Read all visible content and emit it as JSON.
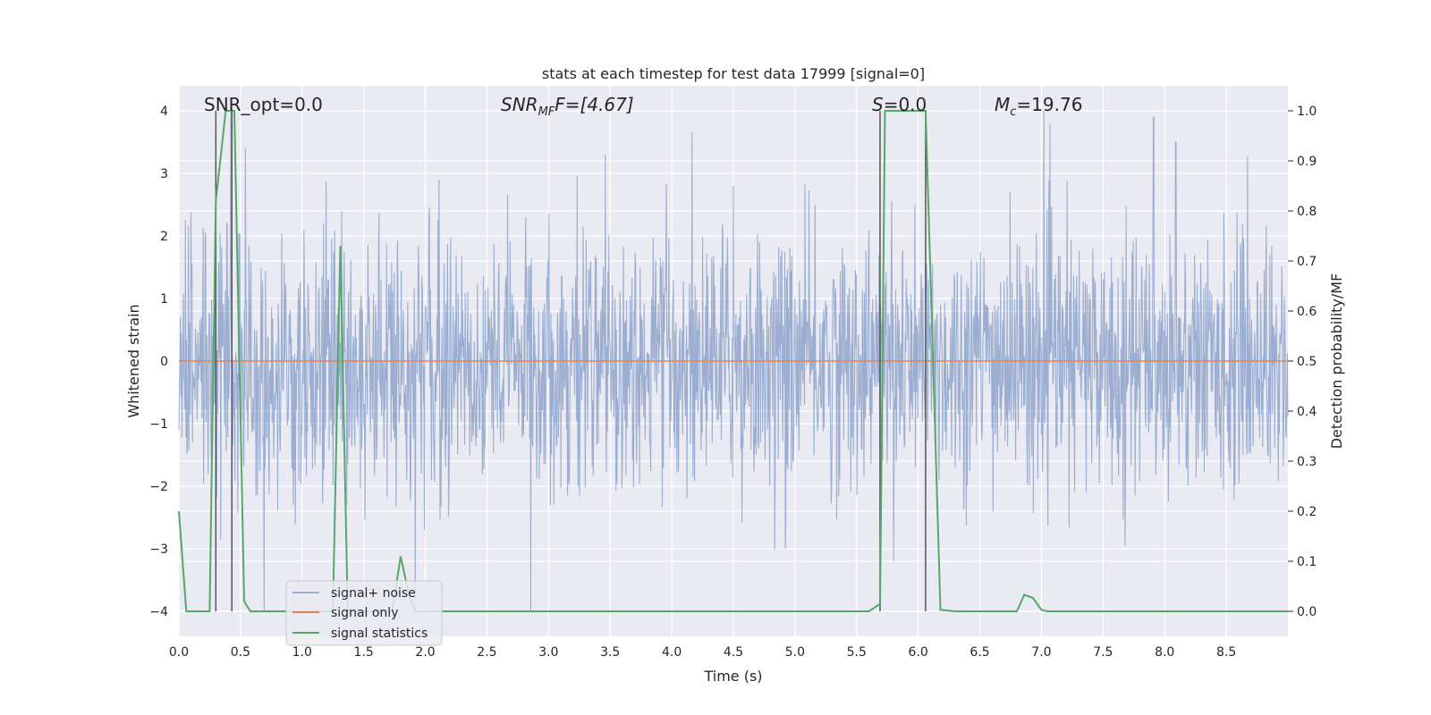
{
  "chart_data": {
    "type": "line",
    "title": "stats at each timestep for test data 17999 [signal=0]",
    "xlabel": "Time (s)",
    "ylabel": "Whitened strain",
    "y2label": "Detection probability/MF",
    "xlim": [
      0.0,
      9.0
    ],
    "ylim": [
      -4.4,
      4.4
    ],
    "y2lim": [
      -0.05,
      1.05
    ],
    "xticks": [
      "0.0",
      "0.5",
      "1.0",
      "1.5",
      "2.0",
      "2.5",
      "3.0",
      "3.5",
      "4.0",
      "4.5",
      "5.0",
      "5.5",
      "6.0",
      "6.5",
      "7.0",
      "7.5",
      "8.0",
      "8.5"
    ],
    "xtick_values": [
      0.0,
      0.5,
      1.0,
      1.5,
      2.0,
      2.5,
      3.0,
      3.5,
      4.0,
      4.5,
      5.0,
      5.5,
      6.0,
      6.5,
      7.0,
      7.5,
      8.0,
      8.5
    ],
    "yticks": [
      "−4",
      "−3",
      "−2",
      "−1",
      "0",
      "1",
      "2",
      "3",
      "4"
    ],
    "ytick_values": [
      -4,
      -3,
      -2,
      -1,
      0,
      1,
      2,
      3,
      4
    ],
    "y2ticks": [
      "0.0",
      "0.1",
      "0.2",
      "0.3",
      "0.4",
      "0.5",
      "0.6",
      "0.7",
      "0.8",
      "0.9",
      "1.0"
    ],
    "y2tick_values": [
      0.0,
      0.1,
      0.2,
      0.3,
      0.4,
      0.5,
      0.6,
      0.7,
      0.8,
      0.9,
      1.0
    ],
    "annotations": {
      "snr_opt": "SNR_opt=0.0",
      "snr_mf_main": "SNR",
      "snr_mf_sub": "MF",
      "snr_mf_rest": "F=[4.67]",
      "s_main": "S",
      "s_rest": "=0.0",
      "mc_main": "M",
      "mc_sub": "c",
      "mc_rest": "=19.76"
    },
    "vertical_markers": [
      0.3,
      0.43,
      5.69,
      6.06
    ],
    "series": [
      {
        "name": "signal+ noise",
        "color": "#4c72b0",
        "noise_envelope": {
          "typical_amplitude": 1.6,
          "peak_amplitude": 4.0,
          "notable_peaks": [
            [
              0.42,
              4.0
            ],
            [
              0.54,
              3.4
            ],
            [
              1.32,
              2.4
            ],
            [
              3.46,
              3.3
            ],
            [
              4.5,
              2.8
            ],
            [
              7.02,
              4.0
            ],
            [
              7.91,
              3.9
            ],
            [
              8.09,
              3.5
            ],
            [
              5.8,
              -3.2
            ],
            [
              0.69,
              -4.0
            ],
            [
              1.92,
              -4.0
            ],
            [
              4.92,
              -3.0
            ]
          ]
        }
      },
      {
        "name": "signal only",
        "color": "#dd8452",
        "x": [
          0.0,
          9.0
        ],
        "y": [
          0.0,
          0.0
        ]
      },
      {
        "name": "signal statistics",
        "color": "#55a868",
        "x": [
          0.0,
          0.06,
          0.25,
          0.3,
          0.38,
          0.45,
          0.53,
          0.58,
          1.25,
          1.31,
          1.37,
          1.73,
          1.8,
          1.87,
          1.92,
          5.6,
          5.69,
          5.73,
          6.06,
          6.18,
          6.3,
          6.8,
          6.86,
          6.93,
          7.0,
          7.05,
          9.0
        ],
        "y": [
          0.2,
          0.0,
          0.0,
          0.82,
          1.0,
          1.0,
          0.02,
          0.0,
          0.0,
          0.73,
          0.0,
          0.0,
          0.11,
          0.03,
          0.0,
          0.0,
          0.015,
          1.0,
          1.0,
          0.003,
          0.0,
          0.0,
          0.033,
          0.027,
          0.003,
          0.0,
          0.0
        ]
      }
    ],
    "legend": {
      "placement": "lower-left",
      "entries": [
        "signal+ noise",
        "signal only",
        "signal statistics"
      ]
    },
    "grid": true
  }
}
